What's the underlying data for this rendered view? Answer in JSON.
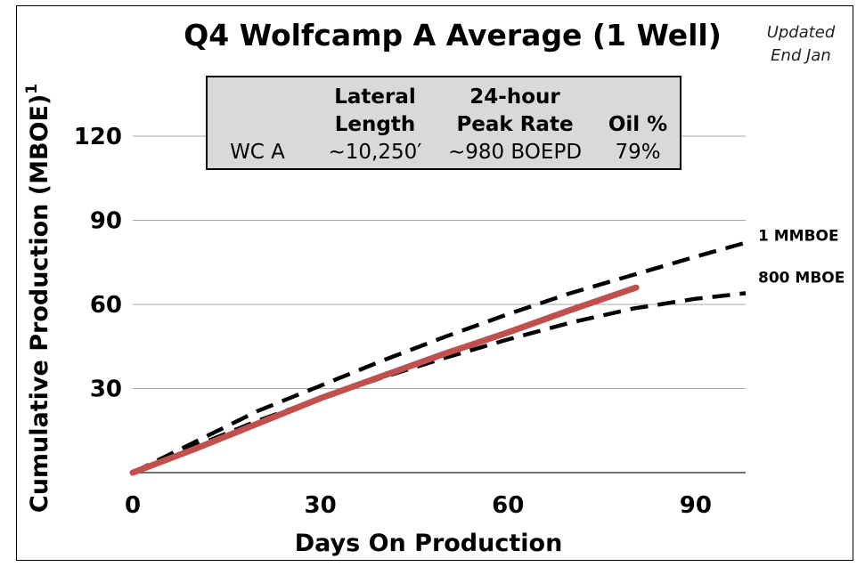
{
  "note": [
    "Updated",
    "End Jan"
  ],
  "info_table": {
    "headers": [
      {
        "line1": "",
        "line2": ""
      },
      {
        "line1": "Lateral",
        "line2": "Length"
      },
      {
        "line1": "24-hour",
        "line2": "Peak Rate"
      },
      {
        "line1": "",
        "line2": "Oil %"
      }
    ],
    "row": [
      "WC A",
      "~10,250′",
      "~980 BOEPD",
      "79%"
    ]
  },
  "chart_data": {
    "type": "line",
    "title": "Q4 Wolfcamp A Average (1 Well)",
    "xlabel": "Days On Production",
    "ylabel": "Cumulative Production (MBOE)",
    "ylabel_superscript": "1",
    "xlim": [
      0,
      98
    ],
    "ylim": [
      0,
      120
    ],
    "x_ticks": [
      0,
      30,
      60,
      90
    ],
    "y_ticks": [
      30,
      60,
      90,
      120
    ],
    "grid": "horizontal",
    "series": [
      {
        "name": "1 MMBOE",
        "style": "dashed",
        "color": "#000000",
        "x": [
          0,
          10,
          20,
          30,
          40,
          50,
          60,
          70,
          80,
          90,
          98
        ],
        "y": [
          0,
          11,
          22,
          31,
          40,
          48.5,
          56.5,
          64,
          70.5,
          77,
          82
        ]
      },
      {
        "name": "800 MBOE",
        "style": "dashed",
        "color": "#000000",
        "x": [
          0,
          10,
          20,
          30,
          40,
          50,
          60,
          70,
          80,
          90,
          98
        ],
        "y": [
          0,
          9.5,
          18.5,
          26.5,
          34,
          41,
          47.5,
          53.5,
          58.5,
          62,
          64
        ]
      },
      {
        "name": "",
        "style": "solid",
        "color": "#c0504d",
        "x": [
          0,
          10,
          20,
          30,
          40,
          50,
          60,
          70,
          80.5
        ],
        "y": [
          0,
          8.5,
          17.5,
          26.5,
          34.5,
          42.5,
          50,
          58,
          66
        ]
      }
    ]
  }
}
